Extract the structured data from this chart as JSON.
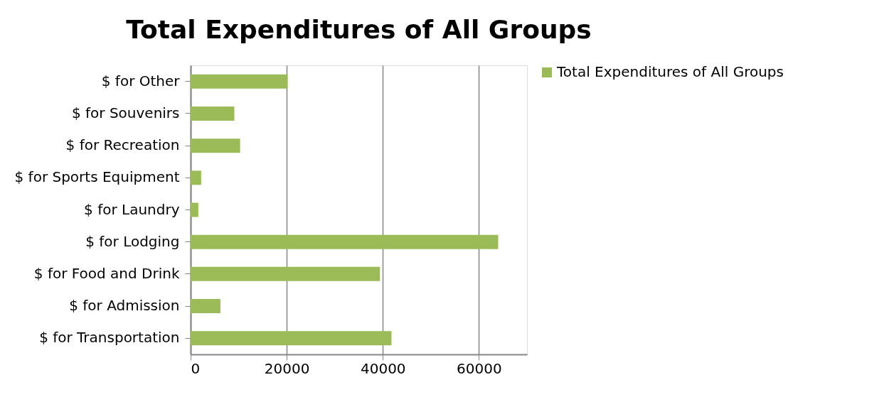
{
  "chart_data": {
    "type": "bar",
    "orientation": "horizontal",
    "title": "Total Expenditures of All Groups",
    "categories": [
      "$ for Other",
      "$ for Souvenirs",
      "$ for Recreation",
      "$ for Sports Equipment",
      "$ for Laundry",
      "$ for Lodging",
      "$ for Food and Drink",
      "$ for Admission",
      "$ for Transportation"
    ],
    "series": [
      {
        "name": "Total Expenditures of All Groups",
        "color": "#9bbb59",
        "values": [
          20200,
          9100,
          10300,
          2200,
          1600,
          64000,
          39400,
          6200,
          41800
        ]
      }
    ],
    "xlim": [
      0,
      70000
    ],
    "xticks": [
      0,
      20000,
      40000,
      60000
    ],
    "grid": "x",
    "legend": "right"
  }
}
